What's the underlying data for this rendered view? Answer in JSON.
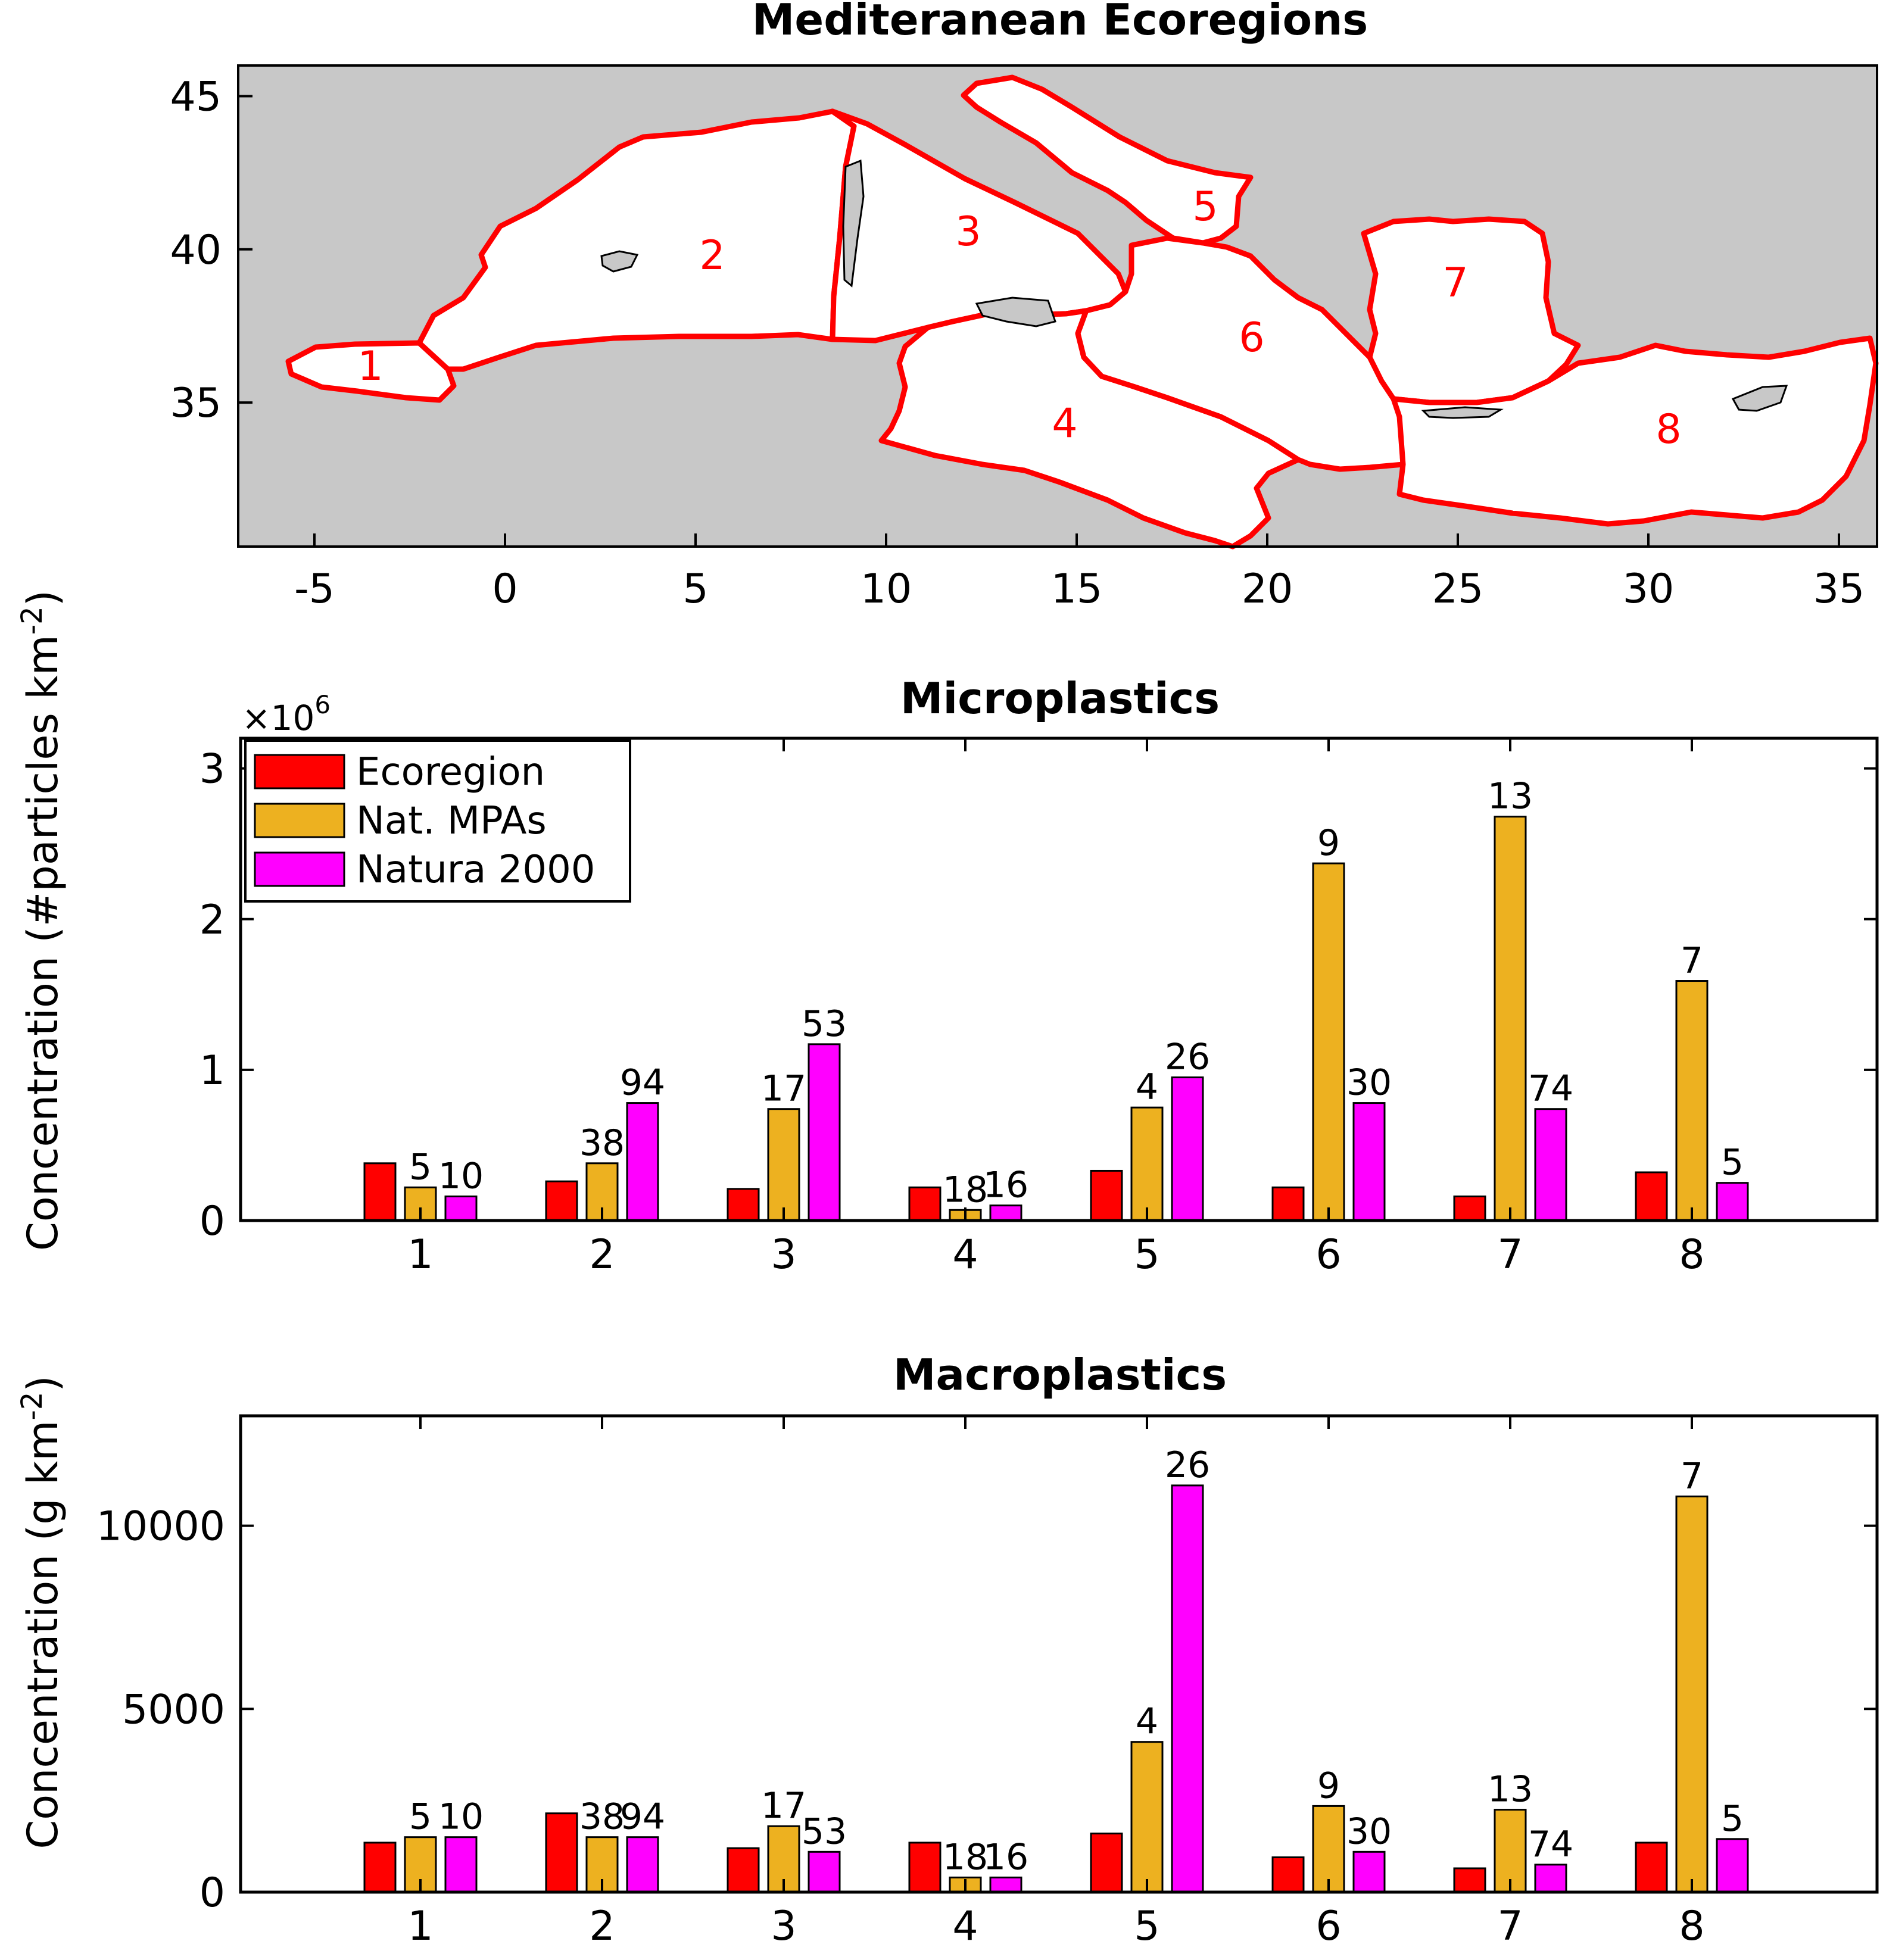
{
  "colors": {
    "ecoregion": "#ff0000",
    "mpa": "#edb120",
    "natura": "#ff00ff",
    "land": "#c8c8c8",
    "boundary": "#ff0000"
  },
  "map": {
    "title": "Mediteranean Ecoregions",
    "xticks": [
      "-5",
      "0",
      "5",
      "10",
      "15",
      "20",
      "25",
      "30",
      "35"
    ],
    "yticks": [
      "45",
      "40",
      "35"
    ],
    "region_labels": [
      "1",
      "2",
      "3",
      "4",
      "5",
      "6",
      "7",
      "8"
    ]
  },
  "chart_data": [
    {
      "type": "bar",
      "title": "Microplastics",
      "ylabel": "Concentration (#particles km^-2)",
      "y_multiplier": "×10^6",
      "categories": [
        "1",
        "2",
        "3",
        "4",
        "5",
        "6",
        "7",
        "8"
      ],
      "ylim": [
        0,
        3.2
      ],
      "yticks": [
        0,
        1,
        2,
        3
      ],
      "legend": "top-left",
      "series": [
        {
          "name": "Ecoregion",
          "values": [
            0.38,
            0.26,
            0.21,
            0.22,
            0.33,
            0.22,
            0.16,
            0.32
          ]
        },
        {
          "name": "Nat. MPAs",
          "values": [
            0.22,
            0.38,
            0.74,
            0.07,
            0.75,
            2.37,
            2.68,
            1.59
          ],
          "labels": [
            "5",
            "38",
            "17",
            "18",
            "4",
            "9",
            "13",
            "7"
          ]
        },
        {
          "name": "Natura 2000",
          "values": [
            0.16,
            0.78,
            1.17,
            0.1,
            0.95,
            0.78,
            0.74,
            0.25
          ],
          "labels": [
            "10",
            "94",
            "53",
            "16",
            "26",
            "30",
            "74",
            "5"
          ]
        }
      ]
    },
    {
      "type": "bar",
      "title": "Macroplastics",
      "ylabel": "Concentration (g km^-2)",
      "categories": [
        "1",
        "2",
        "3",
        "4",
        "5",
        "6",
        "7",
        "8"
      ],
      "ylim": [
        0,
        13000
      ],
      "yticks": [
        0,
        5000,
        10000
      ],
      "series": [
        {
          "name": "Ecoregion",
          "values": [
            1350,
            2150,
            1200,
            1350,
            1600,
            950,
            650,
            1350
          ]
        },
        {
          "name": "Nat. MPAs",
          "values": [
            1500,
            1500,
            1800,
            400,
            4100,
            2350,
            2250,
            10800
          ],
          "labels": [
            "5",
            "38",
            "17",
            "18",
            "4",
            "9",
            "13",
            "7"
          ]
        },
        {
          "name": "Natura 2000",
          "values": [
            1500,
            1500,
            1100,
            400,
            11100,
            1100,
            750,
            1450
          ],
          "labels": [
            "10",
            "94",
            "53",
            "16",
            "26",
            "30",
            "74",
            "5"
          ]
        }
      ]
    }
  ]
}
